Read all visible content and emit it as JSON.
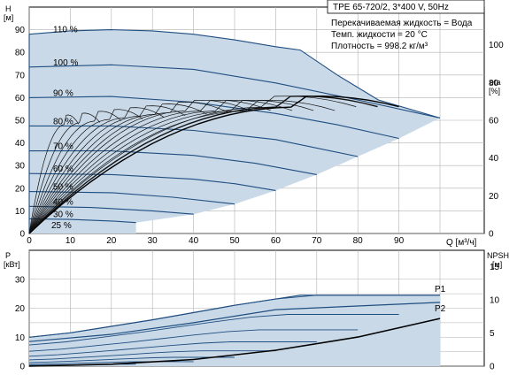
{
  "chart_data": [
    {
      "type": "line",
      "title": "TPE 65-720/2, 3*400 V, 50Hz",
      "info": [
        "Перекачиваемая жидкость = Вода",
        "Темп. жидкости = 20 °C",
        "Плотность = 998.2 кг/м³"
      ],
      "ylabel": [
        "H",
        "[м]"
      ],
      "y2label": [
        "eta",
        "[%]"
      ],
      "xlabel": "Q [м³/ч]",
      "xlim": [
        0,
        100
      ],
      "ylim": [
        0,
        100
      ],
      "y2lim": [
        0,
        120
      ],
      "xticks": [
        0,
        10,
        20,
        30,
        40,
        50,
        60,
        70,
        80,
        90
      ],
      "yticks": [
        0,
        10,
        20,
        30,
        40,
        50,
        60,
        70,
        80,
        90
      ],
      "y2ticks": [
        0,
        20,
        40,
        60,
        80,
        100
      ],
      "speed_curves": [
        {
          "label": "110 %",
          "qmax": 100,
          "points": [
            [
              0,
              88
            ],
            [
              10,
              89.5
            ],
            [
              20,
              90
            ],
            [
              30,
              89.5
            ],
            [
              40,
              88
            ],
            [
              50,
              85.5
            ],
            [
              60,
              82.5
            ],
            [
              66,
              81
            ],
            [
              75,
              70
            ],
            [
              85,
              59
            ],
            [
              100,
              51
            ]
          ]
        },
        {
          "label": "100 %",
          "qmax": 100,
          "points": [
            [
              0,
              73.5
            ],
            [
              20,
              74.5
            ],
            [
              40,
              72.5
            ],
            [
              60,
              66.5
            ],
            [
              80,
              59
            ],
            [
              100,
              51
            ]
          ]
        },
        {
          "label": "90 %",
          "qmax": 90,
          "points": [
            [
              0,
              60
            ],
            [
              20,
              60.5
            ],
            [
              40,
              58
            ],
            [
              60,
              53
            ],
            [
              75,
              48
            ],
            [
              90,
              42
            ]
          ]
        },
        {
          "label": "80 %",
          "qmax": 80,
          "points": [
            [
              0,
              47.5
            ],
            [
              20,
              47.5
            ],
            [
              40,
              45.5
            ],
            [
              60,
              41.5
            ],
            [
              80,
              34
            ]
          ]
        },
        {
          "label": "70 %",
          "qmax": 70,
          "points": [
            [
              0,
              36.5
            ],
            [
              20,
              36.5
            ],
            [
              40,
              34.5
            ],
            [
              55,
              31
            ],
            [
              70,
              26
            ]
          ]
        },
        {
          "label": "60 %",
          "qmax": 60,
          "points": [
            [
              0,
              26.5
            ],
            [
              20,
              26
            ],
            [
              40,
              24
            ],
            [
              50,
              22
            ],
            [
              60,
              19
            ]
          ]
        },
        {
          "label": "50 %",
          "qmax": 50,
          "points": [
            [
              0,
              18.5
            ],
            [
              20,
              18
            ],
            [
              35,
              16
            ],
            [
              50,
              13
            ]
          ]
        },
        {
          "label": "40 %",
          "qmax": 40,
          "points": [
            [
              0,
              12
            ],
            [
              15,
              11.5
            ],
            [
              30,
              10
            ],
            [
              40,
              8.5
            ]
          ]
        },
        {
          "label": "30 %",
          "qmax": 26,
          "points": [
            [
              0,
              6.5
            ],
            [
              10,
              6.2
            ],
            [
              20,
              5.5
            ],
            [
              26,
              4.8
            ]
          ]
        },
        {
          "label": "25 %",
          "qmax": 0,
          "points": []
        }
      ],
      "efficiency_curves": {
        "axis": "eta [%]",
        "peak": 65
      }
    },
    {
      "type": "line",
      "ylabel": [
        "P",
        "[кВт]"
      ],
      "y2label": [
        "NPSH",
        "[м]"
      ],
      "xlim": [
        0,
        100
      ],
      "ylim": [
        0,
        30
      ],
      "y2lim": [
        0,
        17.5
      ],
      "yticks": [
        0,
        10,
        20,
        30
      ],
      "y2ticks": [
        0,
        5,
        10,
        15
      ],
      "series": [
        {
          "name": "P1",
          "points": [
            [
              0,
              10
            ],
            [
              10,
              11.5
            ],
            [
              30,
              16
            ],
            [
              50,
              21
            ],
            [
              66,
              24.5
            ],
            [
              100,
              24.5
            ]
          ]
        },
        {
          "name": "P2",
          "points": [
            [
              0,
              8.5
            ],
            [
              20,
              11
            ],
            [
              40,
              15
            ],
            [
              60,
              19.5
            ],
            [
              100,
              22
            ]
          ]
        }
      ],
      "npsh": {
        "points": [
          [
            0,
            0
          ],
          [
            20,
            0.3
          ],
          [
            40,
            1
          ],
          [
            60,
            2.4
          ],
          [
            80,
            4.4
          ],
          [
            100,
            7.2
          ]
        ]
      }
    }
  ]
}
